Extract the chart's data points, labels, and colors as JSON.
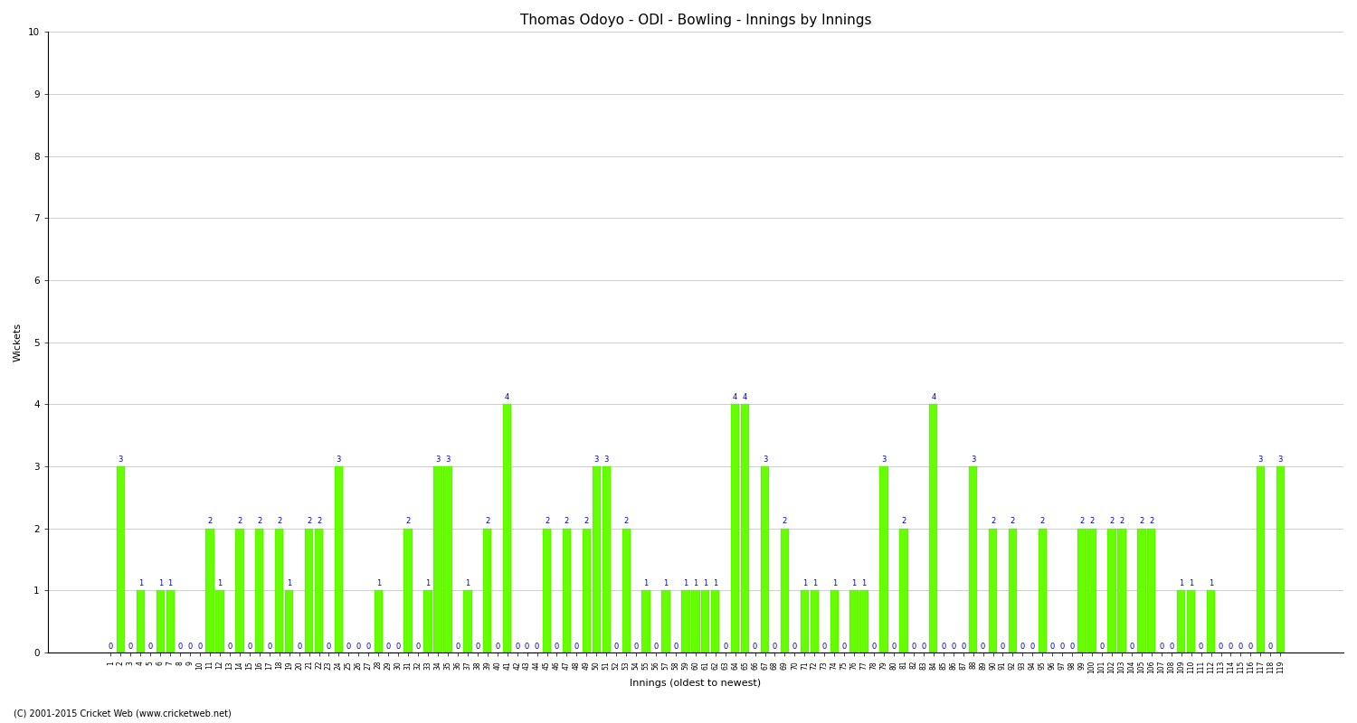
{
  "title": "Thomas Odoyo - ODI - Bowling - Innings by Innings",
  "ylabel": "Wickets",
  "xlabel": "Innings (oldest to newest)",
  "ylim": [
    0,
    10
  ],
  "yticks": [
    0,
    1,
    2,
    3,
    4,
    5,
    6,
    7,
    8,
    9,
    10
  ],
  "background_color": "#ffffff",
  "bar_color": "#66ff00",
  "bar_edge_color": "#33cc00",
  "label_color": "#0000cc",
  "grid_color": "#bbbbbb",
  "copyright": "(C) 2001-2015 Cricket Web (www.cricketweb.net)",
  "wickets": [
    0,
    3,
    0,
    1,
    0,
    1,
    1,
    0,
    0,
    0,
    2,
    1,
    0,
    2,
    0,
    2,
    0,
    2,
    1,
    0,
    2,
    2,
    0,
    3,
    0,
    0,
    0,
    1,
    0,
    0,
    2,
    0,
    1,
    3,
    3,
    0,
    1,
    0,
    2,
    0,
    4,
    0,
    0,
    0,
    2,
    0,
    2,
    0,
    2,
    3,
    3,
    0,
    2,
    0,
    1,
    0,
    1,
    0,
    1,
    1,
    1,
    1,
    0,
    4,
    4,
    0,
    3,
    0,
    2,
    0,
    1,
    1,
    0,
    1,
    0,
    1,
    1,
    0,
    3,
    0,
    2,
    0,
    0,
    4,
    0,
    0,
    0,
    3,
    0,
    2,
    0,
    2,
    0,
    0,
    2,
    0,
    0,
    0,
    2,
    2,
    0,
    2,
    2,
    0,
    2,
    2,
    0,
    0,
    1,
    1,
    0,
    1,
    0,
    0,
    0,
    0,
    3,
    0,
    3
  ],
  "title_fontsize": 11,
  "label_fontsize": 8,
  "annotation_fontsize": 6,
  "tick_fontsize": 5.5,
  "ylabel_fontsize": 8
}
